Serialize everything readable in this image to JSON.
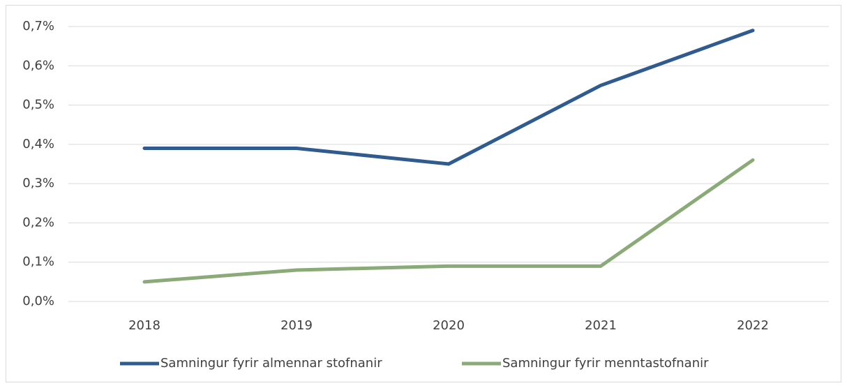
{
  "chart_data": {
    "type": "line",
    "categories": [
      "2018",
      "2019",
      "2020",
      "2021",
      "2022"
    ],
    "series": [
      {
        "name": "Samningur fyrir almennar stofnanir",
        "color": "#2f5b8f",
        "values": [
          0.39,
          0.39,
          0.35,
          0.55,
          0.69
        ]
      },
      {
        "name": "Samningur fyrir menntastofnanir",
        "color": "#8aab78",
        "values": [
          0.05,
          0.08,
          0.09,
          0.09,
          0.36
        ]
      }
    ],
    "ylim": [
      0,
      0.7
    ],
    "yticks": [
      {
        "value": 0,
        "label": "0,0%"
      },
      {
        "value": 0.1,
        "label": "0,1%"
      },
      {
        "value": 0.2,
        "label": "0,2%"
      },
      {
        "value": 0.3,
        "label": "0,3%"
      },
      {
        "value": 0.4,
        "label": "0,4%"
      },
      {
        "value": 0.5,
        "label": "0,5%"
      },
      {
        "value": 0.6,
        "label": "0,6%"
      },
      {
        "value": 0.7,
        "label": "0,7%"
      }
    ],
    "grid": true,
    "legend": "bottom"
  }
}
